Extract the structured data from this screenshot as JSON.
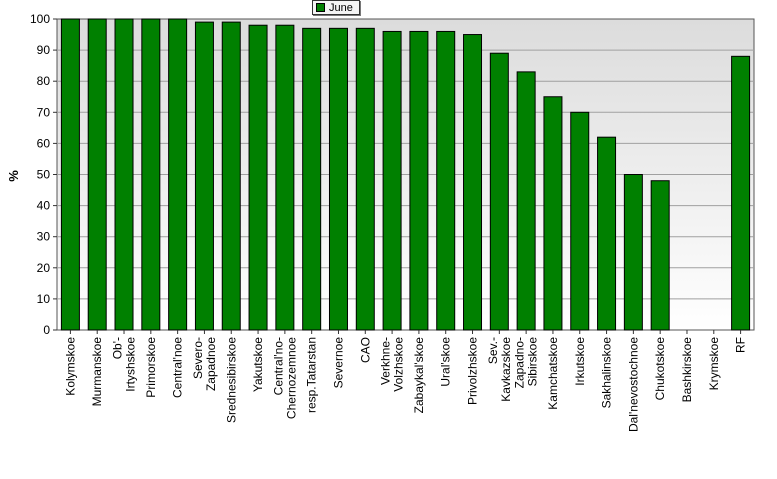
{
  "chart_data": {
    "type": "bar",
    "title": "",
    "xlabel": "",
    "ylabel": "%",
    "ylim": [
      0,
      100
    ],
    "yticks": [
      0,
      10,
      20,
      30,
      40,
      50,
      60,
      70,
      80,
      90,
      100
    ],
    "grid": true,
    "legend_placement": "top-center",
    "colors": {
      "bar": "#008000",
      "bar_border": "#000000",
      "plot_bg_top": "#dcdcdc",
      "plot_bg_bottom": "#ffffff"
    },
    "categories": [
      "Kolymskoe",
      "Murmanskoe",
      "Ob'-Irtyshskoe",
      "Primorskoe",
      "Central'noe",
      "Severo-Zapadnoe",
      "Srednesibirskoe",
      "Yakutskoe",
      "Central'no-Chernozemnoe",
      "resp.Tatarstan",
      "Severnoe",
      "CAO",
      "Verkhne-Volzhskoe",
      "Zabaykal'skoe",
      "Ural'skoe",
      "Privolzhskoe",
      "Sev.-Kavkazskoe",
      "Zapadno-Sibirskoe",
      "Kamchatskoe",
      "Irkutskoe",
      "Sakhalinskoe",
      "Dal'nevostochnoe",
      "Chukotskoe",
      "Bashkirskoe",
      "Krymskoe",
      "RF"
    ],
    "series": [
      {
        "name": "June",
        "values": [
          100,
          100,
          100,
          100,
          100,
          99,
          99,
          98,
          98,
          97,
          97,
          97,
          96,
          96,
          96,
          95,
          89,
          83,
          75,
          70,
          62,
          50,
          48,
          0,
          0,
          88
        ]
      }
    ]
  }
}
